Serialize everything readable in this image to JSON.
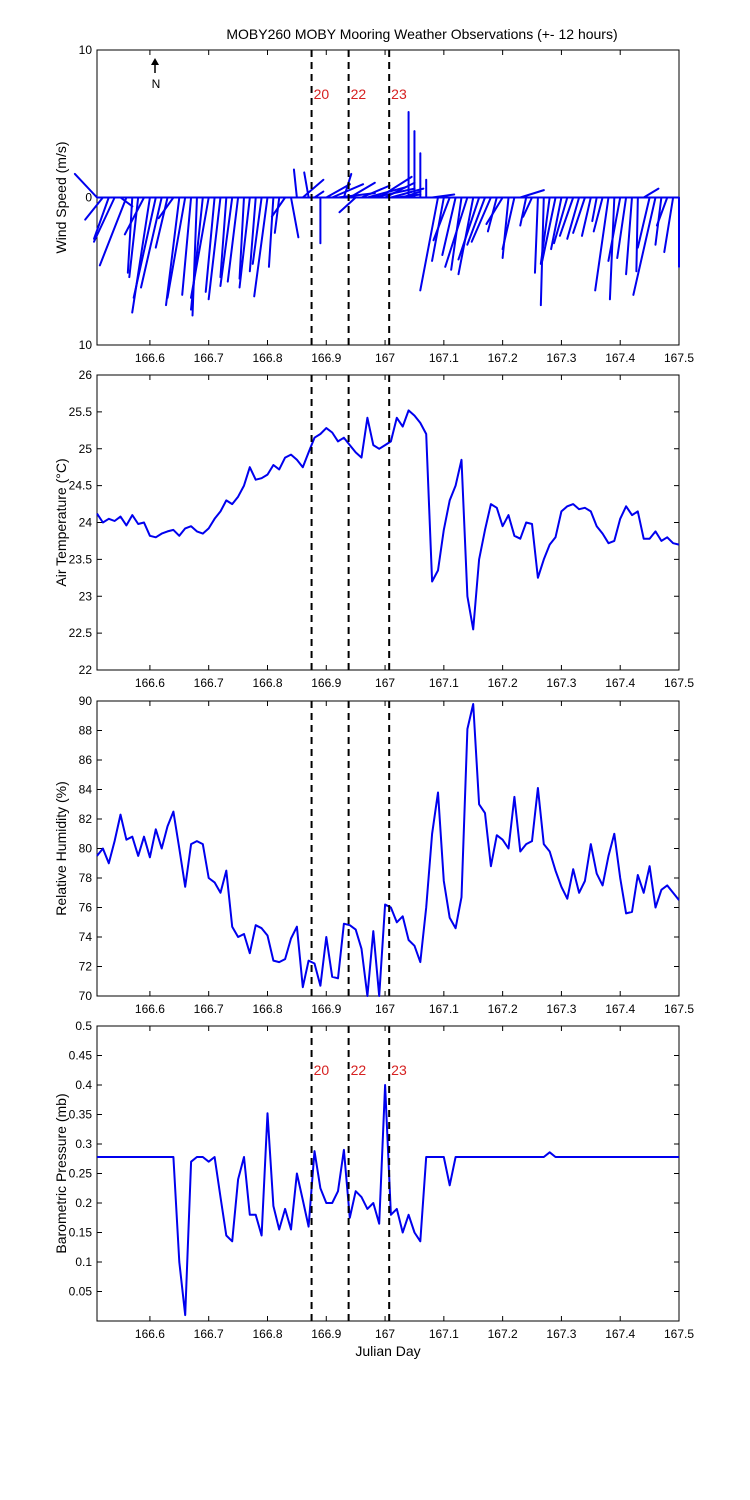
{
  "figure": {
    "title": "MOBY260 MOBY Mooring Weather Observations (+- 12 hours)",
    "north_label": "N",
    "line_color": "#0000ee",
    "marker_color": "#d62020"
  },
  "chart_data": [
    {
      "type": "line",
      "subtype": "wind-stick",
      "ylabel": "Wind Speed (m/s)",
      "xlim": [
        166.51,
        167.5
      ],
      "ylim": [
        -10,
        10
      ],
      "xticks": [
        166.6,
        166.7,
        166.8,
        166.9,
        167,
        167.1,
        167.2,
        167.3,
        167.4,
        167.5
      ],
      "xtick_labels": [
        "166.6",
        "166.7",
        "166.8",
        "166.9",
        "167",
        "167.1",
        "167.2",
        "167.3",
        "167.4",
        "167.5"
      ],
      "yticks": [
        -10,
        0,
        10
      ],
      "ytick_labels": [
        "10",
        "0",
        "10"
      ],
      "markers": [
        {
          "x": 166.875,
          "label": "20"
        },
        {
          "x": 166.938,
          "label": "22"
        },
        {
          "x": 167.007,
          "label": "23"
        }
      ],
      "sticks": [
        [
          166.51,
          -1.5,
          1.6
        ],
        [
          166.52,
          -1.2,
          -1.5
        ],
        [
          166.53,
          -1.0,
          -2.8
        ],
        [
          166.54,
          -1.4,
          -3.0
        ],
        [
          166.55,
          0.8,
          -0.6
        ],
        [
          166.56,
          -1.8,
          -4.6
        ],
        [
          166.57,
          -0.3,
          -5.1
        ],
        [
          166.58,
          -0.6,
          -5.4
        ],
        [
          166.59,
          -1.3,
          -2.5
        ],
        [
          166.6,
          -1.2,
          -7.8
        ],
        [
          166.61,
          -1.5,
          -6.8
        ],
        [
          166.62,
          -1.4,
          -6.1
        ],
        [
          166.63,
          -0.8,
          -3.4
        ],
        [
          166.64,
          -1.0,
          -1.4
        ],
        [
          166.65,
          -0.9,
          -7.3
        ],
        [
          166.66,
          -1.2,
          -6.8
        ],
        [
          166.67,
          -0.6,
          -6.6
        ],
        [
          166.68,
          -0.3,
          -8.0
        ],
        [
          166.69,
          -0.8,
          -7.6
        ],
        [
          166.7,
          -1.2,
          -6.8
        ],
        [
          166.71,
          -0.6,
          -6.4
        ],
        [
          166.72,
          -0.8,
          -6.9
        ],
        [
          166.73,
          -0.4,
          -5.4
        ],
        [
          166.74,
          -0.8,
          -6.0
        ],
        [
          166.75,
          -0.7,
          -5.7
        ],
        [
          166.76,
          -0.3,
          -5.5
        ],
        [
          166.77,
          -0.7,
          -6.1
        ],
        [
          166.78,
          -0.4,
          -5.0
        ],
        [
          166.79,
          -0.6,
          -4.5
        ],
        [
          166.8,
          -0.9,
          -6.7
        ],
        [
          166.81,
          -0.3,
          -4.7
        ],
        [
          166.82,
          -0.3,
          -2.4
        ],
        [
          166.83,
          -0.9,
          -1.3
        ],
        [
          166.84,
          0.5,
          -2.7
        ],
        [
          166.85,
          -0.2,
          1.9
        ],
        [
          166.86,
          1.4,
          1.2
        ],
        [
          166.87,
          -0.3,
          1.7
        ],
        [
          166.88,
          0.6,
          0.4
        ],
        [
          166.89,
          0.0,
          -3.1
        ],
        [
          166.9,
          1.6,
          0.9
        ],
        [
          166.91,
          2.1,
          0.9
        ],
        [
          166.92,
          2.5,
          0.3
        ],
        [
          166.93,
          0.5,
          1.6
        ],
        [
          166.94,
          1.7,
          1.0
        ],
        [
          166.95,
          -1.1,
          -1.0
        ],
        [
          166.96,
          1.9,
          0.8
        ],
        [
          166.97,
          2.6,
          0.7
        ],
        [
          166.98,
          2.8,
          0.6
        ],
        [
          166.99,
          2.2,
          1.4
        ],
        [
          167.0,
          2.0,
          1.0
        ],
        [
          167.01,
          2.2,
          0.6
        ],
        [
          167.02,
          1.6,
          0.2
        ],
        [
          167.03,
          1.2,
          0.4
        ],
        [
          167.04,
          0.0,
          5.8
        ],
        [
          167.05,
          0.0,
          4.5
        ],
        [
          167.06,
          0.0,
          3.0
        ],
        [
          167.07,
          0.0,
          1.2
        ],
        [
          167.08,
          1.5,
          0.2
        ],
        [
          167.09,
          -1.2,
          -6.3
        ],
        [
          167.1,
          -0.8,
          -4.3
        ],
        [
          167.11,
          -1.1,
          -2.9
        ],
        [
          167.12,
          -0.9,
          -3.9
        ],
        [
          167.13,
          -0.7,
          -4.9
        ],
        [
          167.14,
          -1.5,
          -4.7
        ],
        [
          167.15,
          -1.0,
          -5.2
        ],
        [
          167.16,
          -1.4,
          -4.2
        ],
        [
          167.17,
          -1.2,
          -3.2
        ],
        [
          167.18,
          -1.3,
          -3.0
        ],
        [
          167.19,
          -0.6,
          -2.3
        ],
        [
          167.2,
          -1.1,
          -1.8
        ],
        [
          167.21,
          -0.4,
          -4.1
        ],
        [
          167.22,
          -0.8,
          -3.5
        ],
        [
          167.23,
          1.6,
          0.5
        ],
        [
          167.24,
          -0.4,
          -1.9
        ],
        [
          167.25,
          -0.6,
          -1.3
        ],
        [
          167.26,
          -0.2,
          -5.1
        ],
        [
          167.27,
          -0.2,
          -7.3
        ],
        [
          167.28,
          -0.6,
          -4.5
        ],
        [
          167.29,
          -0.9,
          -4.3
        ],
        [
          167.3,
          -0.7,
          -3.5
        ],
        [
          167.31,
          -0.9,
          -3.1
        ],
        [
          167.32,
          -0.9,
          -2.6
        ],
        [
          167.33,
          -0.8,
          -2.8
        ],
        [
          167.34,
          -0.8,
          -2.4
        ],
        [
          167.35,
          -0.6,
          -2.6
        ],
        [
          167.36,
          -0.3,
          -1.6
        ],
        [
          167.37,
          -0.6,
          -2.3
        ],
        [
          167.38,
          -0.9,
          -6.3
        ],
        [
          167.39,
          -0.3,
          -6.9
        ],
        [
          167.4,
          -0.8,
          -4.3
        ],
        [
          167.41,
          -0.6,
          -4.1
        ],
        [
          167.42,
          -0.4,
          -5.2
        ],
        [
          167.43,
          -0.1,
          -5.0
        ],
        [
          167.44,
          1.0,
          0.6
        ],
        [
          167.45,
          -0.8,
          -3.4
        ],
        [
          167.46,
          -1.5,
          -6.6
        ],
        [
          167.47,
          -0.4,
          -3.2
        ],
        [
          167.48,
          -0.7,
          -1.9
        ],
        [
          167.49,
          -0.6,
          -3.7
        ],
        [
          167.5,
          0.0,
          -4.7
        ]
      ]
    },
    {
      "type": "line",
      "ylabel": "Air Temperature (°C)",
      "xlim": [
        166.51,
        167.5
      ],
      "ylim": [
        22,
        26
      ],
      "xticks": [
        166.6,
        166.7,
        166.8,
        166.9,
        167,
        167.1,
        167.2,
        167.3,
        167.4,
        167.5
      ],
      "xtick_labels": [
        "166.6",
        "166.7",
        "166.8",
        "166.9",
        "167",
        "167.1",
        "167.2",
        "167.3",
        "167.4",
        "167.5"
      ],
      "yticks": [
        22,
        22.5,
        23,
        23.5,
        24,
        24.5,
        25,
        25.5,
        26
      ],
      "ytick_labels": [
        "22",
        "22.5",
        "23",
        "23.5",
        "24",
        "24.5",
        "25",
        "25.5",
        "26"
      ],
      "markers": [
        {
          "x": 166.875
        },
        {
          "x": 166.938
        },
        {
          "x": 167.007
        }
      ],
      "x": [
        166.51,
        166.52,
        166.53,
        166.54,
        166.55,
        166.56,
        166.57,
        166.58,
        166.59,
        166.6,
        166.61,
        166.62,
        166.63,
        166.64,
        166.65,
        166.66,
        166.67,
        166.68,
        166.69,
        166.7,
        166.71,
        166.72,
        166.73,
        166.74,
        166.75,
        166.76,
        166.77,
        166.78,
        166.79,
        166.8,
        166.81,
        166.82,
        166.83,
        166.84,
        166.85,
        166.86,
        166.87,
        166.88,
        166.89,
        166.9,
        166.91,
        166.92,
        166.93,
        166.94,
        166.95,
        166.96,
        166.97,
        166.98,
        166.99,
        167.0,
        167.01,
        167.02,
        167.03,
        167.04,
        167.05,
        167.06,
        167.07,
        167.08,
        167.09,
        167.1,
        167.11,
        167.12,
        167.13,
        167.14,
        167.15,
        167.16,
        167.17,
        167.18,
        167.19,
        167.2,
        167.21,
        167.22,
        167.23,
        167.24,
        167.25,
        167.26,
        167.27,
        167.28,
        167.29,
        167.3,
        167.31,
        167.32,
        167.33,
        167.34,
        167.35,
        167.36,
        167.37,
        167.38,
        167.39,
        167.4,
        167.41,
        167.42,
        167.43,
        167.44,
        167.45,
        167.46,
        167.47,
        167.48,
        167.49,
        167.5
      ],
      "y": [
        24.12,
        24.0,
        24.05,
        24.02,
        24.08,
        23.96,
        24.1,
        23.98,
        24.0,
        23.82,
        23.8,
        23.85,
        23.88,
        23.9,
        23.82,
        23.92,
        23.95,
        23.88,
        23.85,
        23.92,
        24.05,
        24.15,
        24.3,
        24.25,
        24.35,
        24.5,
        24.75,
        24.58,
        24.6,
        24.65,
        24.78,
        24.72,
        24.88,
        24.92,
        24.85,
        24.75,
        24.95,
        25.15,
        25.2,
        25.28,
        25.22,
        25.1,
        25.15,
        25.05,
        24.95,
        24.88,
        25.42,
        25.05,
        25.0,
        25.05,
        25.1,
        25.42,
        25.3,
        25.52,
        25.45,
        25.35,
        25.2,
        23.2,
        23.35,
        23.9,
        24.3,
        24.5,
        24.85,
        23.0,
        22.55,
        23.5,
        23.9,
        24.25,
        24.2,
        23.95,
        24.1,
        23.82,
        23.78,
        24.0,
        23.98,
        23.25,
        23.5,
        23.7,
        23.8,
        24.15,
        24.22,
        24.25,
        24.18,
        24.2,
        24.15,
        23.95,
        23.85,
        23.72,
        23.75,
        24.05,
        24.22,
        24.1,
        24.15,
        23.78,
        23.78,
        23.88,
        23.75,
        23.8,
        23.72,
        23.7
      ]
    },
    {
      "type": "line",
      "ylabel": "Relative Humidity (%)",
      "xlim": [
        166.51,
        167.5
      ],
      "ylim": [
        70,
        90
      ],
      "xticks": [
        166.6,
        166.7,
        166.8,
        166.9,
        167,
        167.1,
        167.2,
        167.3,
        167.4,
        167.5
      ],
      "xtick_labels": [
        "166.6",
        "166.7",
        "166.8",
        "166.9",
        "167",
        "167.1",
        "167.2",
        "167.3",
        "167.4",
        "167.5"
      ],
      "yticks": [
        70,
        72,
        74,
        76,
        78,
        80,
        82,
        84,
        86,
        88,
        90
      ],
      "ytick_labels": [
        "70",
        "72",
        "74",
        "76",
        "78",
        "80",
        "82",
        "84",
        "86",
        "88",
        "90"
      ],
      "markers": [
        {
          "x": 166.875
        },
        {
          "x": 166.938
        },
        {
          "x": 167.007
        }
      ],
      "x": [
        166.51,
        166.52,
        166.53,
        166.54,
        166.55,
        166.56,
        166.57,
        166.58,
        166.59,
        166.6,
        166.61,
        166.62,
        166.63,
        166.64,
        166.65,
        166.66,
        166.67,
        166.68,
        166.69,
        166.7,
        166.71,
        166.72,
        166.73,
        166.74,
        166.75,
        166.76,
        166.77,
        166.78,
        166.79,
        166.8,
        166.81,
        166.82,
        166.83,
        166.84,
        166.85,
        166.86,
        166.87,
        166.88,
        166.89,
        166.9,
        166.91,
        166.92,
        166.93,
        166.94,
        166.95,
        166.96,
        166.97,
        166.98,
        166.99,
        167.0,
        167.01,
        167.02,
        167.03,
        167.04,
        167.05,
        167.06,
        167.07,
        167.08,
        167.09,
        167.1,
        167.11,
        167.12,
        167.13,
        167.14,
        167.15,
        167.16,
        167.17,
        167.18,
        167.19,
        167.2,
        167.21,
        167.22,
        167.23,
        167.24,
        167.25,
        167.26,
        167.27,
        167.28,
        167.29,
        167.3,
        167.31,
        167.32,
        167.33,
        167.34,
        167.35,
        167.36,
        167.37,
        167.38,
        167.39,
        167.4,
        167.41,
        167.42,
        167.43,
        167.44,
        167.45,
        167.46,
        167.47,
        167.48,
        167.49,
        167.5
      ],
      "y": [
        79.5,
        80.0,
        79.0,
        80.5,
        82.3,
        80.6,
        80.8,
        79.5,
        80.8,
        79.4,
        81.3,
        80.0,
        81.5,
        82.5,
        80.0,
        77.4,
        80.3,
        80.5,
        80.3,
        78.0,
        77.7,
        77.0,
        78.5,
        74.7,
        74.0,
        74.2,
        72.9,
        74.8,
        74.6,
        74.1,
        72.4,
        72.3,
        72.5,
        73.9,
        74.7,
        70.6,
        72.4,
        72.2,
        70.7,
        74.0,
        71.3,
        71.2,
        74.9,
        74.8,
        74.5,
        73.2,
        70.0,
        74.4,
        70.0,
        76.2,
        76.0,
        75.0,
        75.4,
        73.8,
        73.4,
        72.3,
        76.0,
        81.0,
        83.8,
        77.8,
        75.3,
        74.6,
        76.7,
        88.1,
        89.8,
        83.0,
        82.4,
        78.8,
        80.9,
        80.6,
        80.0,
        83.5,
        79.8,
        80.3,
        80.5,
        84.1,
        80.3,
        79.8,
        78.5,
        77.4,
        76.6,
        78.6,
        77.0,
        77.8,
        80.3,
        78.3,
        77.5,
        79.5,
        81.0,
        78.0,
        75.6,
        75.7,
        78.2,
        77.0,
        78.8,
        76.0,
        77.2,
        77.5,
        77.0,
        76.5
      ]
    },
    {
      "type": "line",
      "ylabel": "Barometric Pressure (mb)",
      "xlabel": "Julian Day",
      "xlim": [
        166.51,
        167.5
      ],
      "ylim": [
        0,
        0.5
      ],
      "xticks": [
        166.6,
        166.7,
        166.8,
        166.9,
        167,
        167.1,
        167.2,
        167.3,
        167.4,
        167.5
      ],
      "xtick_labels": [
        "166.6",
        "166.7",
        "166.8",
        "166.9",
        "167",
        "167.1",
        "167.2",
        "167.3",
        "167.4",
        "167.5"
      ],
      "yticks": [
        0,
        0.05,
        0.1,
        0.15,
        0.2,
        0.25,
        0.3,
        0.35,
        0.4,
        0.45,
        0.5
      ],
      "ytick_labels": [
        "",
        "0.05",
        "0.1",
        "0.15",
        "0.2",
        "0.25",
        "0.3",
        "0.35",
        "0.4",
        "0.45",
        "0.5"
      ],
      "markers": [
        {
          "x": 166.875,
          "label": "20"
        },
        {
          "x": 166.938,
          "label": "22"
        },
        {
          "x": 167.007,
          "label": "23"
        }
      ],
      "x": [
        166.51,
        166.64,
        166.65,
        166.66,
        166.67,
        166.68,
        166.69,
        166.7,
        166.71,
        166.72,
        166.73,
        166.74,
        166.75,
        166.76,
        166.77,
        166.78,
        166.79,
        166.8,
        166.81,
        166.82,
        166.83,
        166.84,
        166.85,
        166.86,
        166.87,
        166.88,
        166.89,
        166.9,
        166.91,
        166.92,
        166.93,
        166.94,
        166.95,
        166.96,
        166.97,
        166.98,
        166.99,
        167.0,
        167.01,
        167.02,
        167.03,
        167.04,
        167.05,
        167.06,
        167.07,
        167.08,
        167.09,
        167.1,
        167.11,
        167.12,
        167.13,
        167.14,
        167.15,
        167.27,
        167.28,
        167.29,
        167.5
      ],
      "y": [
        0.278,
        0.278,
        0.1,
        0.01,
        0.27,
        0.278,
        0.278,
        0.27,
        0.278,
        0.21,
        0.145,
        0.135,
        0.24,
        0.278,
        0.18,
        0.18,
        0.145,
        0.352,
        0.195,
        0.155,
        0.19,
        0.155,
        0.25,
        0.205,
        0.16,
        0.288,
        0.225,
        0.2,
        0.2,
        0.22,
        0.29,
        0.175,
        0.22,
        0.21,
        0.19,
        0.2,
        0.165,
        0.4,
        0.18,
        0.19,
        0.15,
        0.18,
        0.15,
        0.135,
        0.278,
        0.278,
        0.278,
        0.278,
        0.23,
        0.278,
        0.278,
        0.278,
        0.278,
        0.278,
        0.286,
        0.278,
        0.278
      ]
    }
  ]
}
